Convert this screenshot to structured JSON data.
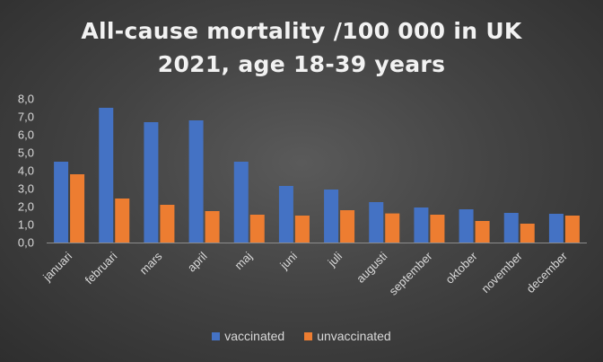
{
  "chart_data": {
    "type": "bar",
    "title_lines": [
      "All-cause mortality /100 000 in UK",
      "2021, age 18-39 years"
    ],
    "categories": [
      "januari",
      "februari",
      "mars",
      "april",
      "maj",
      "juni",
      "juli",
      "augusti",
      "september",
      "oktober",
      "november",
      "december"
    ],
    "series": [
      {
        "name": "vaccinated",
        "color": "#4472c4",
        "values": [
          4.5,
          7.5,
          6.7,
          6.8,
          4.5,
          3.15,
          2.95,
          2.25,
          1.95,
          1.85,
          1.65,
          1.6
        ]
      },
      {
        "name": "unvaccinated",
        "color": "#ed7d31",
        "values": [
          3.8,
          2.45,
          2.1,
          1.75,
          1.55,
          1.5,
          1.8,
          1.62,
          1.55,
          1.2,
          1.05,
          1.5
        ]
      }
    ],
    "y_ticks": [
      "0,0",
      "1,0",
      "2,0",
      "3,0",
      "4,0",
      "5,0",
      "6,0",
      "7,0",
      "8,0"
    ],
    "ylim": [
      0,
      8
    ],
    "xlabel": "",
    "ylabel": "",
    "grid": false,
    "legend_position": "bottom"
  }
}
